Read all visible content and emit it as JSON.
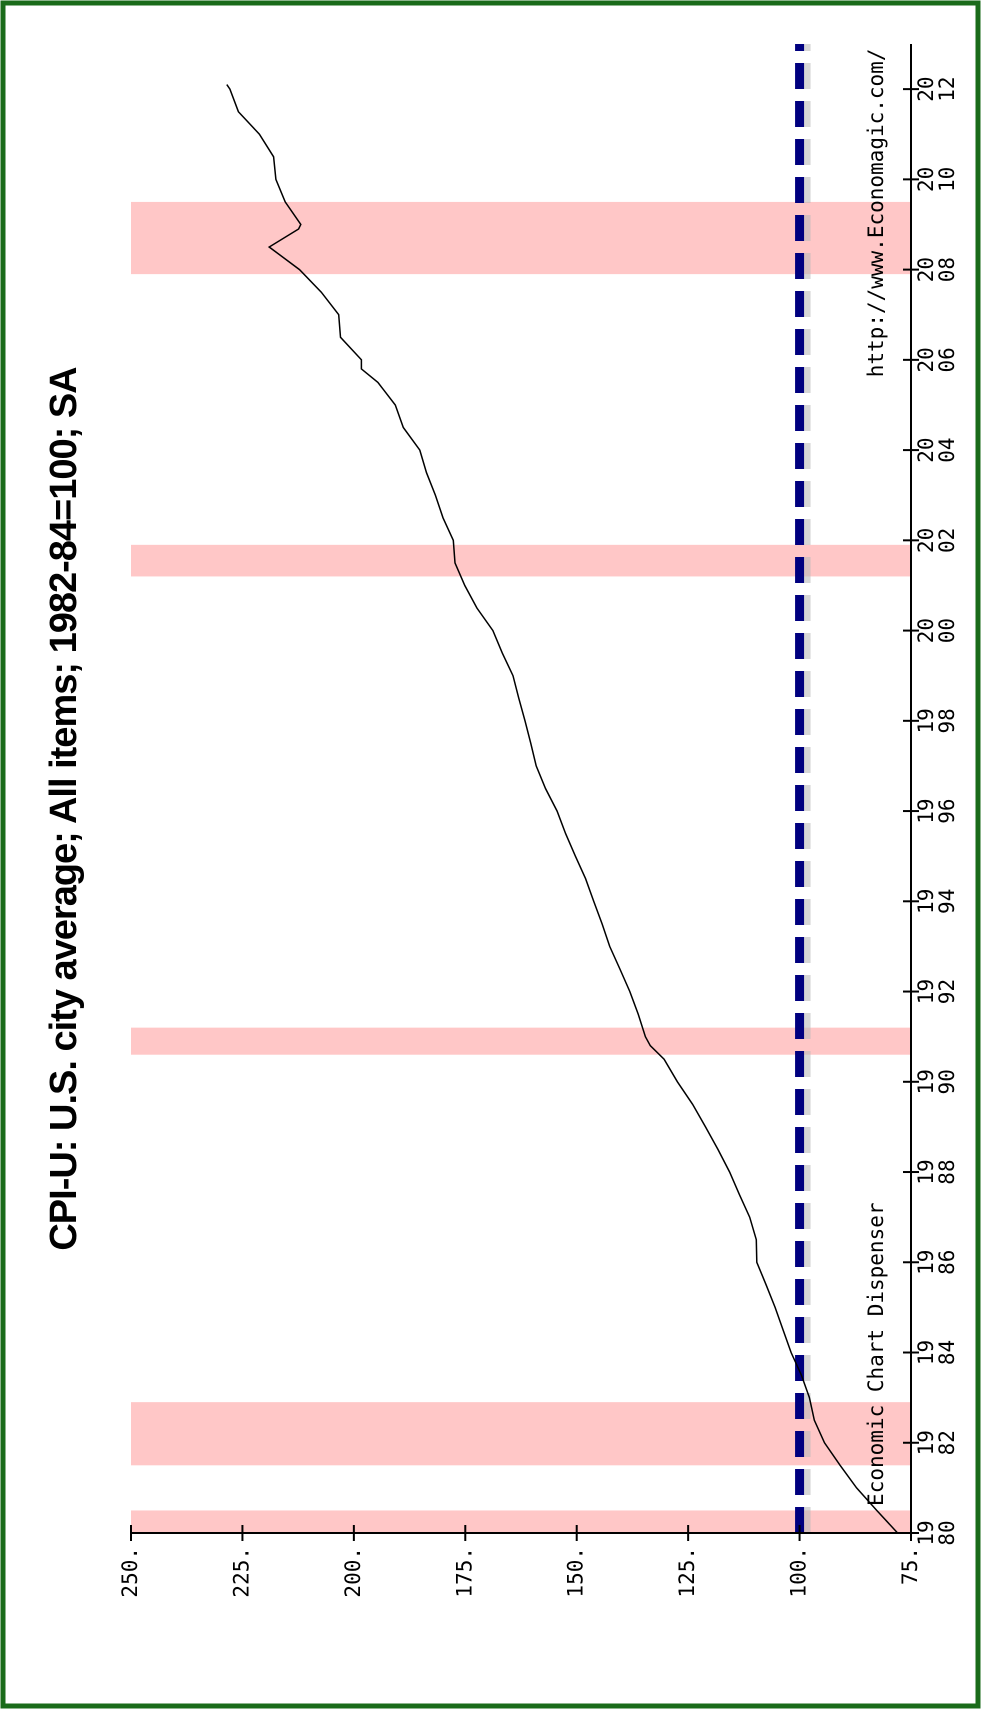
{
  "chart_data": {
    "type": "line",
    "title": "CPI-U: U.S. city average; All items; 1982-84=100; SA",
    "annotations": [
      "Economic Chart Dispenser",
      "http://www.Economagic.com/"
    ],
    "x": [
      1980.0,
      1980.5,
      1981.0,
      1981.5,
      1982.0,
      1982.5,
      1983.0,
      1983.5,
      1984.0,
      1984.5,
      1985.0,
      1985.5,
      1986.0,
      1986.5,
      1987.0,
      1987.5,
      1988.0,
      1988.5,
      1989.0,
      1989.5,
      1990.0,
      1990.5,
      1990.8,
      1991.0,
      1991.5,
      1992.0,
      1992.5,
      1993.0,
      1993.5,
      1994.0,
      1994.5,
      1995.0,
      1995.5,
      1996.0,
      1996.5,
      1997.0,
      1997.5,
      1998.0,
      1998.5,
      1999.0,
      1999.5,
      2000.0,
      2000.5,
      2001.0,
      2001.5,
      2002.0,
      2002.5,
      2003.0,
      2003.5,
      2004.0,
      2004.5,
      2005.0,
      2005.5,
      2005.8,
      2006.0,
      2006.5,
      2007.0,
      2007.5,
      2008.0,
      2008.5,
      2008.9,
      2009.0,
      2009.5,
      2010.0,
      2010.5,
      2011.0,
      2011.5,
      2012.0,
      2012.1
    ],
    "series": [
      {
        "name": "CPI-U",
        "color": "#000000",
        "values": [
          78.0,
          82.7,
          87.2,
          90.9,
          94.4,
          96.7,
          97.8,
          99.6,
          101.9,
          103.7,
          105.5,
          107.5,
          109.6,
          109.7,
          111.2,
          113.5,
          115.7,
          118.3,
          121.1,
          124.0,
          127.4,
          130.4,
          133.5,
          134.6,
          136.2,
          138.1,
          140.3,
          142.6,
          144.3,
          146.2,
          148.0,
          150.3,
          152.5,
          154.4,
          157.0,
          159.1,
          160.3,
          161.6,
          163.0,
          164.3,
          166.7,
          168.8,
          172.4,
          175.1,
          177.3,
          177.7,
          180.0,
          181.7,
          183.7,
          185.2,
          188.9,
          190.7,
          194.6,
          198.3,
          198.3,
          203.0,
          203.4,
          207.3,
          212.2,
          219.0,
          212.4,
          211.9,
          215.4,
          217.5,
          218.0,
          221.2,
          225.9,
          227.8,
          228.5
        ]
      }
    ],
    "baseline": {
      "value": 100,
      "color": "#00007f"
    },
    "recessions": [
      [
        1980.0,
        1980.5
      ],
      [
        1981.5,
        1982.9
      ],
      [
        1990.6,
        1991.2
      ],
      [
        2001.2,
        2001.9
      ],
      [
        2007.9,
        2009.5
      ]
    ],
    "recession_color": "#ffc7c7",
    "xlim": [
      1980,
      2013
    ],
    "xticks": [
      {
        "value": 1980,
        "label": "19 80"
      },
      {
        "value": 1982,
        "label": "19 82"
      },
      {
        "value": 1984,
        "label": "19 84"
      },
      {
        "value": 1986,
        "label": "19 86"
      },
      {
        "value": 1988,
        "label": "19 88"
      },
      {
        "value": 1990,
        "label": "19 90"
      },
      {
        "value": 1992,
        "label": "19 92"
      },
      {
        "value": 1994,
        "label": "19 94"
      },
      {
        "value": 1996,
        "label": "19 96"
      },
      {
        "value": 1998,
        "label": "19 98"
      },
      {
        "value": 2000,
        "label": "20 00"
      },
      {
        "value": 2002,
        "label": "20 02"
      },
      {
        "value": 2004,
        "label": "20 04"
      },
      {
        "value": 2006,
        "label": "20 06"
      },
      {
        "value": 2008,
        "label": "20 08"
      },
      {
        "value": 2010,
        "label": "20 10"
      },
      {
        "value": 2012,
        "label": "20 12"
      }
    ],
    "ylim": [
      75,
      250
    ],
    "yticks": [
      {
        "value": 75,
        "label": "75."
      },
      {
        "value": 100,
        "label": "100."
      },
      {
        "value": 125,
        "label": "125."
      },
      {
        "value": 150,
        "label": "150."
      },
      {
        "value": 175,
        "label": "175."
      },
      {
        "value": 200,
        "label": "200."
      },
      {
        "value": 225,
        "label": "225."
      },
      {
        "value": 250,
        "label": "250."
      }
    ],
    "frame_color": "#1a6b1a"
  }
}
